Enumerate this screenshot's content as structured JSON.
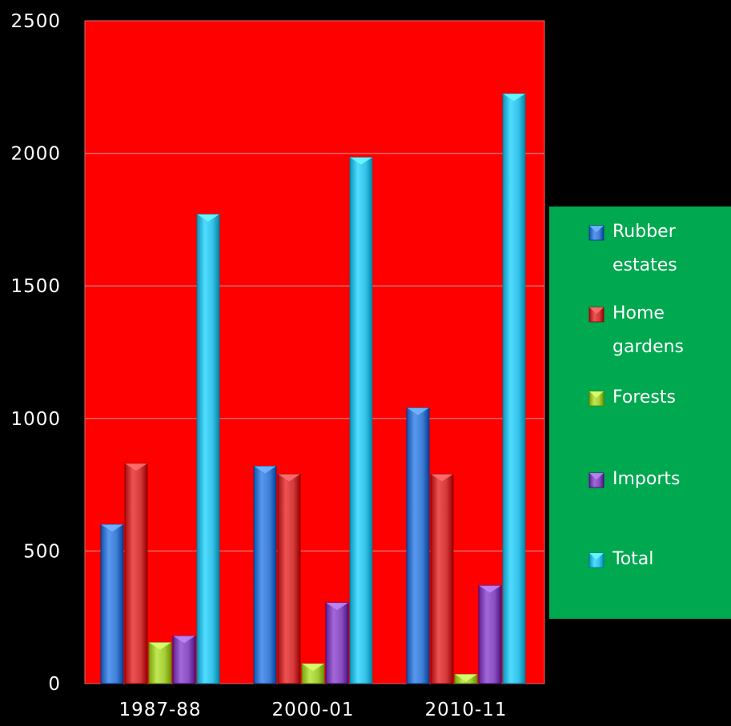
{
  "colors": {
    "background": "#000000",
    "plot_area": "#ff0000",
    "legend_background": "#00a84f",
    "text": "#ffffff",
    "gridline": "#d96a6a"
  },
  "chart_data": {
    "type": "bar",
    "title": "",
    "xlabel": "",
    "ylabel": "",
    "categories": [
      "1987-88",
      "2000-01",
      "2010-11"
    ],
    "ylim": [
      0,
      2500
    ],
    "yticks": [
      0,
      500,
      1000,
      1500,
      2000,
      2500
    ],
    "grid": true,
    "legend_position": "right",
    "series": [
      {
        "name": "Rubber estates",
        "legend_lines": [
          "Rubber",
          "estates"
        ],
        "color": "#3f7fd6",
        "values": [
          600,
          820,
          1040
        ]
      },
      {
        "name": "Home gardens",
        "legend_lines": [
          "Home",
          "gardens"
        ],
        "color": "#d43a3a",
        "values": [
          830,
          790,
          790
        ]
      },
      {
        "name": "Forests",
        "legend_lines": [
          "Forests"
        ],
        "color": "#a7cf3a",
        "values": [
          155,
          75,
          35
        ]
      },
      {
        "name": "Imports",
        "legend_lines": [
          "Imports"
        ],
        "color": "#8a4fc0",
        "values": [
          180,
          305,
          370
        ]
      },
      {
        "name": "Total",
        "legend_lines": [
          "Total"
        ],
        "color": "#37c3e8",
        "values": [
          1770,
          1985,
          2225
        ]
      }
    ]
  }
}
